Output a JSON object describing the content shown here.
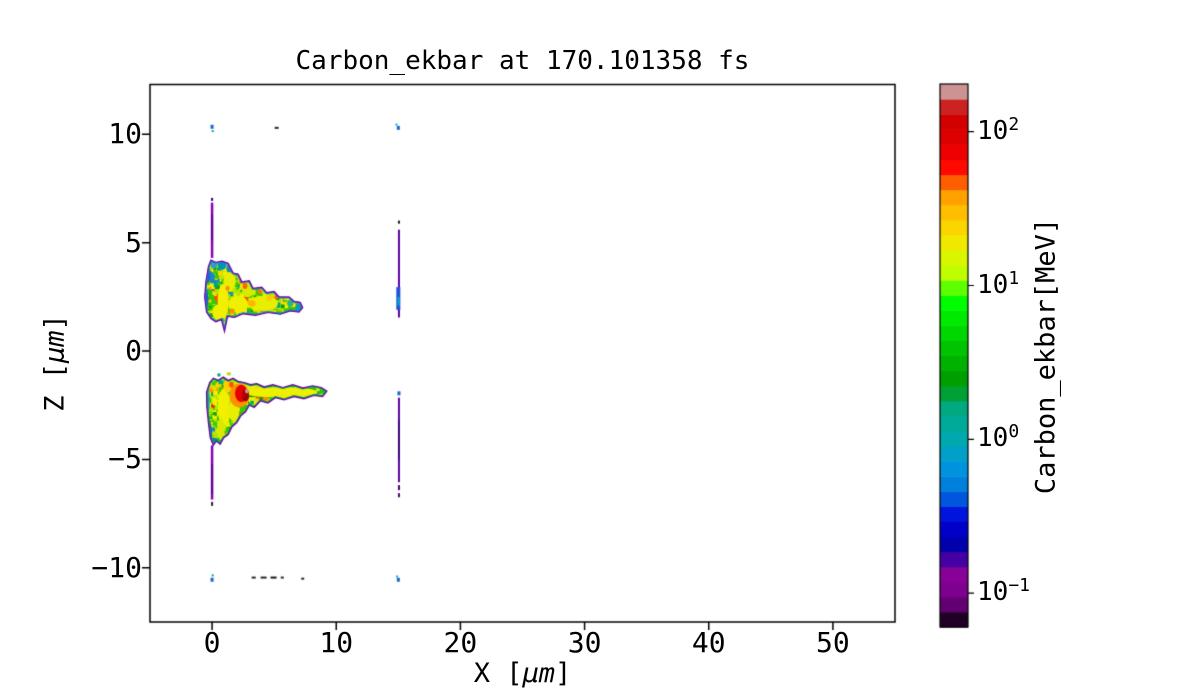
{
  "title": "Carbon_ekbar at 170.101358 fs",
  "axes": {
    "xlabel": {
      "prefix": "X [",
      "unit": "μm",
      "suffix": "]"
    },
    "ylabel": {
      "prefix": "Z [",
      "unit": "μm",
      "suffix": "]"
    }
  },
  "colorbar": {
    "label": "Carbon_ekbar[MeV]"
  },
  "chart_data": {
    "type": "heatmap",
    "title": "Carbon_ekbar at 170.101358 fs",
    "species": "Carbon",
    "quantity": "ekbar",
    "unit": "MeV",
    "time_fs": 170.101358,
    "grid": false,
    "x_axis": {
      "label": "X [μm]",
      "range": [
        -5,
        55
      ],
      "ticks": [
        0,
        10,
        20,
        30,
        40,
        50
      ]
    },
    "z_axis": {
      "label": "Z [μm]",
      "range": [
        -12.5,
        12.3
      ],
      "ticks": [
        10,
        5,
        0,
        -5,
        -10
      ]
    },
    "color_axis": {
      "label": "Carbon_ekbar[MeV]",
      "scale": "log",
      "tick_values": [
        100,
        10,
        1,
        0.1
      ],
      "tick_exponents": [
        2,
        1,
        0,
        -1
      ],
      "log_range": [
        -1.22,
        2.31
      ],
      "range_MeV": [
        0.06,
        205
      ],
      "bands": 36,
      "colormap": "nipy_spectral",
      "stops": [
        [
          0.0,
          "#000000"
        ],
        [
          0.05,
          "#770088"
        ],
        [
          0.1,
          "#880099"
        ],
        [
          0.15,
          "#0000aa"
        ],
        [
          0.2,
          "#0000dd"
        ],
        [
          0.25,
          "#0077dd"
        ],
        [
          0.3,
          "#0099dd"
        ],
        [
          0.35,
          "#00aaaa"
        ],
        [
          0.4,
          "#00aa88"
        ],
        [
          0.45,
          "#009900"
        ],
        [
          0.5,
          "#00bb00"
        ],
        [
          0.55,
          "#00dd00"
        ],
        [
          0.6,
          "#00ff00"
        ],
        [
          0.65,
          "#bbff00"
        ],
        [
          0.7,
          "#eeee00"
        ],
        [
          0.75,
          "#ffcc00"
        ],
        [
          0.8,
          "#ff9900"
        ],
        [
          0.85,
          "#ff0000"
        ],
        [
          0.9,
          "#dd0000"
        ],
        [
          0.95,
          "#cc0000"
        ],
        [
          1.0,
          "#cccccc"
        ]
      ]
    },
    "features": {
      "upper_plume": {
        "x_extent": [
          -0.6,
          7.3
        ],
        "z_extent": [
          0.9,
          4.2
        ],
        "typical_MeV": [
          3,
          30
        ],
        "hot_spot_MeV": 60
      },
      "lower_plume": {
        "x_extent": [
          -0.45,
          9.25
        ],
        "z_extent": [
          -4.35,
          -1.2
        ],
        "typical_MeV": [
          3,
          30
        ],
        "peak_MeV": 150,
        "peak_location": [
          2.6,
          -1.9
        ]
      },
      "jet_at_x0": {
        "x": 0,
        "z_segments": [
          [
            4.3,
            6.85
          ],
          [
            -6.85,
            -4.35
          ]
        ],
        "MeV": [
          0.1,
          0.5
        ]
      },
      "jet_at_x15": {
        "x": 15,
        "z_segments": [
          [
            1.55,
            5.6
          ],
          [
            -6.05,
            -2.15
          ]
        ],
        "MeV": [
          0.1,
          1.5
        ]
      },
      "boundary_particles": {
        "z_rows": [
          10.3,
          -10.5
        ],
        "x_positions": [
          0,
          5.2,
          15
        ],
        "MeV": [
          0.1,
          1
        ]
      }
    },
    "render": {
      "plumes": [
        {
          "name": "upper-plume",
          "seed": 42,
          "base": "#2fbf10",
          "edge_inner": "#1787c8",
          "edge_outer": "#7800a8",
          "outline": [
            [
              -0.1,
              4.2
            ],
            [
              0.3,
              4.1
            ],
            [
              0.8,
              4.15
            ],
            [
              1.3,
              4.05
            ],
            [
              1.7,
              3.6
            ],
            [
              2.1,
              3.55
            ],
            [
              2.4,
              3.2
            ],
            [
              3.0,
              3.25
            ],
            [
              3.3,
              2.9
            ],
            [
              4.0,
              2.95
            ],
            [
              4.4,
              2.7
            ],
            [
              5.0,
              2.75
            ],
            [
              5.4,
              2.5
            ],
            [
              6.2,
              2.5
            ],
            [
              6.6,
              2.3
            ],
            [
              7.1,
              2.25
            ],
            [
              7.3,
              2.0
            ],
            [
              7.0,
              1.8
            ],
            [
              6.3,
              1.85
            ],
            [
              5.5,
              1.7
            ],
            [
              4.5,
              1.78
            ],
            [
              3.5,
              1.65
            ],
            [
              2.5,
              1.72
            ],
            [
              1.8,
              1.55
            ],
            [
              1.25,
              1.6
            ],
            [
              1.0,
              0.9
            ],
            [
              0.75,
              1.45
            ],
            [
              0.3,
              1.35
            ],
            [
              -0.1,
              1.5
            ],
            [
              -0.45,
              1.8
            ],
            [
              -0.6,
              2.5
            ],
            [
              -0.5,
              3.2
            ],
            [
              -0.3,
              3.9
            ]
          ],
          "texture": {
            "patches": 55,
            "cells": 700,
            "palette": [
              [
                "#eef000",
                28
              ],
              [
                "#b4e600",
                16
              ],
              [
                "#32cd00",
                20
              ],
              [
                "#0f9e00",
                8
              ],
              [
                "#ffd200",
                8
              ],
              [
                "#00aa78",
                4
              ],
              [
                "#1e82c8",
                3
              ],
              [
                "#ff8c00",
                4
              ],
              [
                "#ff5000",
                1.5
              ]
            ]
          },
          "spots": [
            [
              0.8,
              4.0,
              0.35,
              0.25,
              "#0096b4"
            ],
            [
              1.45,
              3.8,
              0.3,
              0.22,
              "#1e82c8"
            ],
            [
              0.15,
              4.0,
              0.25,
              0.2,
              "#28a0c8"
            ],
            [
              -0.35,
              3.5,
              0.18,
              0.35,
              "#2858c8"
            ],
            [
              -0.45,
              2.4,
              0.15,
              0.35,
              "#2858c8"
            ],
            [
              7.0,
              2.0,
              0.28,
              0.2,
              "#00a0b4"
            ],
            [
              6.3,
              2.2,
              0.25,
              0.15,
              "#28b48c"
            ],
            [
              0.9,
              2.3,
              0.45,
              0.8,
              "#f0f000"
            ],
            [
              2.1,
              2.15,
              0.8,
              0.4,
              "#eef000"
            ],
            [
              4.1,
              2.2,
              1.2,
              0.35,
              "#e8ee00"
            ],
            [
              1.4,
              3.2,
              0.5,
              0.45,
              "#e8ee00"
            ],
            [
              0.5,
              1.8,
              0.5,
              0.35,
              "#f0f000"
            ],
            [
              2.9,
              2.8,
              0.5,
              0.3,
              "#d8ea00"
            ],
            [
              2.65,
              3.0,
              0.2,
              0.14,
              "#ff6400"
            ],
            [
              3.85,
              2.75,
              0.18,
              0.12,
              "#ff7800"
            ],
            [
              5.2,
              2.5,
              0.18,
              0.12,
              "#ff6400"
            ],
            [
              1.25,
              2.9,
              0.16,
              0.12,
              "#ff8c00"
            ],
            [
              1.6,
              1.85,
              0.22,
              0.12,
              "#ff8c00"
            ],
            [
              3.2,
              2.2,
              0.3,
              0.14,
              "#ffb400"
            ],
            [
              4.6,
              2.45,
              0.25,
              0.12,
              "#ffc800"
            ]
          ]
        },
        {
          "name": "lower-plume",
          "seed": 1337,
          "base": "#2fbf10",
          "edge_inner": "#009e64",
          "edge_outer": "#7800a8",
          "outline": [
            [
              -0.45,
              -1.9
            ],
            [
              -0.2,
              -1.45
            ],
            [
              0.1,
              -1.25
            ],
            [
              0.5,
              -1.35
            ],
            [
              0.9,
              -1.2
            ],
            [
              1.3,
              -1.35
            ],
            [
              1.7,
              -1.25
            ],
            [
              2.1,
              -1.4
            ],
            [
              2.6,
              -1.45
            ],
            [
              3.1,
              -1.55
            ],
            [
              3.6,
              -1.5
            ],
            [
              4.2,
              -1.65
            ],
            [
              4.9,
              -1.55
            ],
            [
              5.7,
              -1.68
            ],
            [
              6.5,
              -1.55
            ],
            [
              7.3,
              -1.7
            ],
            [
              8.1,
              -1.6
            ],
            [
              8.8,
              -1.68
            ],
            [
              9.25,
              -1.85
            ],
            [
              8.9,
              -2.1
            ],
            [
              8.2,
              -2.05
            ],
            [
              7.4,
              -2.2
            ],
            [
              6.6,
              -2.1
            ],
            [
              5.8,
              -2.25
            ],
            [
              5.1,
              -2.15
            ],
            [
              4.5,
              -2.4
            ],
            [
              3.9,
              -2.3
            ],
            [
              3.4,
              -2.6
            ],
            [
              3.0,
              -2.5
            ],
            [
              2.7,
              -2.8
            ],
            [
              2.3,
              -3.0
            ],
            [
              2.0,
              -3.3
            ],
            [
              1.6,
              -3.5
            ],
            [
              1.3,
              -3.85
            ],
            [
              0.95,
              -4.0
            ],
            [
              0.65,
              -4.3
            ],
            [
              0.35,
              -4.15
            ],
            [
              0.1,
              -4.35
            ],
            [
              -0.15,
              -4.0
            ],
            [
              -0.3,
              -3.3
            ],
            [
              -0.42,
              -2.6
            ]
          ],
          "texture": {
            "patches": 70,
            "cells": 900,
            "palette": [
              [
                "#eef000",
                26
              ],
              [
                "#b4e600",
                15
              ],
              [
                "#32cd00",
                20
              ],
              [
                "#0f9e00",
                9
              ],
              [
                "#ffd200",
                8
              ],
              [
                "#00aa78",
                4
              ],
              [
                "#1e82c8",
                3
              ],
              [
                "#ff8c00",
                5
              ],
              [
                "#ff5000",
                2
              ],
              [
                "#e60000",
                1
              ]
            ]
          },
          "spots": [
            [
              5.5,
              -1.9,
              3.0,
              0.24,
              "#eef000"
            ],
            [
              2.8,
              -1.55,
              1.0,
              0.28,
              "#e8ee00"
            ],
            [
              0.95,
              -2.6,
              0.5,
              0.85,
              "#f0f000"
            ],
            [
              1.75,
              -2.75,
              0.45,
              0.5,
              "#e8ee00"
            ],
            [
              0.7,
              -3.6,
              0.3,
              0.5,
              "#d8e800"
            ],
            [
              1.3,
              -1.6,
              0.4,
              0.3,
              "#ffd200"
            ],
            [
              2.2,
              -2.05,
              0.8,
              0.55,
              "#ff9000"
            ],
            [
              2.35,
              -1.95,
              0.5,
              0.4,
              "#e60000"
            ],
            [
              2.7,
              -2.05,
              0.28,
              0.28,
              "#a00000"
            ],
            [
              2.8,
              -1.85,
              0.14,
              0.11,
              "#c89696"
            ],
            [
              1.55,
              -1.55,
              0.18,
              0.13,
              "#ff5000"
            ],
            [
              9.0,
              -1.75,
              0.35,
              0.22,
              "#28c800"
            ],
            [
              -0.2,
              -3.8,
              0.2,
              0.5,
              "#2858c8"
            ],
            [
              0.15,
              -4.2,
              0.28,
              0.2,
              "#1e78c8"
            ],
            [
              -0.32,
              -2.3,
              0.13,
              0.55,
              "#28a0c8"
            ]
          ]
        }
      ],
      "lines": [
        [
          0.0,
          4.3,
          6.85,
          2.5,
          "#8a00b0"
        ],
        [
          0.0,
          5.1,
          6.3,
          1.2,
          "#3c0078"
        ],
        [
          0.0,
          -6.85,
          -4.35,
          2.5,
          "#8a00b0"
        ],
        [
          0.0,
          -6.6,
          -5.2,
          1.2,
          "#3c0078"
        ],
        [
          15.05,
          1.55,
          5.6,
          2,
          "#5a00a0"
        ],
        [
          15.0,
          1.9,
          2.95,
          4,
          "#1e50d8"
        ],
        [
          15.02,
          2.1,
          2.5,
          2,
          "#00b0c0"
        ],
        [
          15.05,
          -6.05,
          -2.15,
          2,
          "#5a00a0"
        ],
        [
          15.05,
          -5.0,
          -3.2,
          1.2,
          "#2a0060"
        ]
      ],
      "dots": [
        [
          0.0,
          10.35,
          3,
          4,
          "#1e64d2"
        ],
        [
          0.05,
          10.15,
          2,
          2,
          "#00a0a0"
        ],
        [
          5.2,
          10.3,
          4,
          2,
          "#282828"
        ],
        [
          15.0,
          10.3,
          3,
          4,
          "#1e64d2"
        ],
        [
          14.85,
          10.45,
          2,
          2,
          "#00b0c0"
        ],
        [
          15.05,
          5.95,
          2,
          3,
          "#181818"
        ],
        [
          0.0,
          7.0,
          2,
          3,
          "#30006a"
        ],
        [
          0.0,
          -7.05,
          2,
          4,
          "#282828"
        ],
        [
          15.05,
          -1.95,
          3,
          4,
          "#1e64d2"
        ],
        [
          15.05,
          -6.3,
          2,
          5,
          "#46006e"
        ],
        [
          15.05,
          -6.65,
          2,
          4,
          "#46006e"
        ],
        [
          0.55,
          -1.1,
          3,
          3,
          "#00a088"
        ],
        [
          1.35,
          -1.05,
          4,
          3,
          "#c8d800"
        ],
        [
          0.05,
          -10.35,
          2,
          2,
          "#00a0a0"
        ],
        [
          0.0,
          -10.55,
          3,
          4,
          "#1e64d2"
        ],
        [
          3.35,
          -10.45,
          4,
          2,
          "#282828"
        ],
        [
          4.15,
          -10.45,
          6,
          2,
          "#282828"
        ],
        [
          4.95,
          -10.45,
          6,
          2,
          "#161616"
        ],
        [
          5.65,
          -10.45,
          3,
          2,
          "#282828"
        ],
        [
          7.3,
          -10.5,
          3,
          2,
          "#282828"
        ],
        [
          15.0,
          -10.55,
          3,
          4,
          "#1e64d2"
        ],
        [
          14.9,
          -10.4,
          2,
          2,
          "#00b0c0"
        ]
      ]
    }
  }
}
